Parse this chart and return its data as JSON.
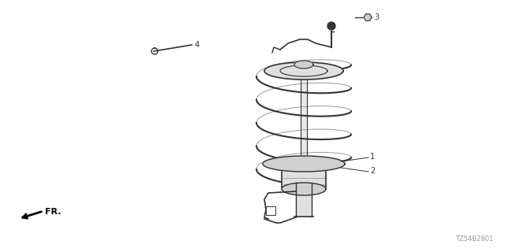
{
  "background_color": "#ffffff",
  "fig_width": 6.4,
  "fig_height": 3.2,
  "dpi": 100,
  "diagram_code": "TZ54B2801",
  "line_color": "#333333",
  "label_color": "#333333",
  "diagram_code_color": "#999999"
}
